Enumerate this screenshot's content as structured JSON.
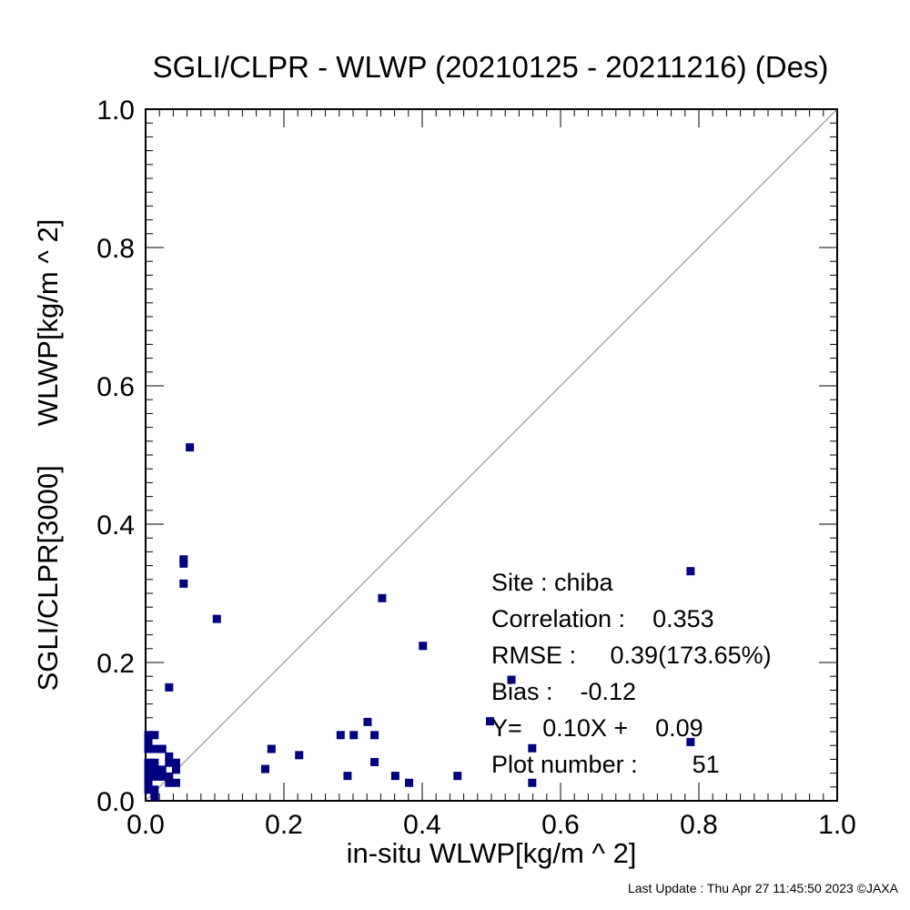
{
  "chart_data": {
    "type": "scatter",
    "title": "SGLI/CLPR - WLWP (20210125 - 20211216) (Des)",
    "xlabel": "in-situ WLWP[kg/m ^ 2]",
    "ylabel": "SGLI/CLPR[3000]     WLWP[kg/m ^ 2]",
    "xlim": [
      0.0,
      1.0
    ],
    "ylim": [
      0.0,
      1.0
    ],
    "x_ticks": [
      "0.0",
      "0.2",
      "0.4",
      "0.6",
      "0.8",
      "1.0"
    ],
    "y_ticks": [
      "0.0",
      "0.2",
      "0.4",
      "0.6",
      "0.8",
      "1.0"
    ],
    "reference_line": "1:1",
    "marker_color": "#000080",
    "points": [
      {
        "x": 0.064,
        "y": 0.511
      },
      {
        "x": 0.055,
        "y": 0.349
      },
      {
        "x": 0.055,
        "y": 0.343
      },
      {
        "x": 0.055,
        "y": 0.314
      },
      {
        "x": 0.103,
        "y": 0.263
      },
      {
        "x": 0.034,
        "y": 0.164
      },
      {
        "x": 0.342,
        "y": 0.293
      },
      {
        "x": 0.401,
        "y": 0.224
      },
      {
        "x": 0.788,
        "y": 0.332
      },
      {
        "x": 0.529,
        "y": 0.175
      },
      {
        "x": 0.498,
        "y": 0.115
      },
      {
        "x": 0.321,
        "y": 0.114
      },
      {
        "x": 0.282,
        "y": 0.095
      },
      {
        "x": 0.301,
        "y": 0.095
      },
      {
        "x": 0.331,
        "y": 0.095
      },
      {
        "x": 0.182,
        "y": 0.075
      },
      {
        "x": 0.222,
        "y": 0.066
      },
      {
        "x": 0.331,
        "y": 0.056
      },
      {
        "x": 0.173,
        "y": 0.046
      },
      {
        "x": 0.292,
        "y": 0.036
      },
      {
        "x": 0.361,
        "y": 0.036
      },
      {
        "x": 0.451,
        "y": 0.036
      },
      {
        "x": 0.381,
        "y": 0.026
      },
      {
        "x": 0.559,
        "y": 0.076
      },
      {
        "x": 0.559,
        "y": 0.026
      },
      {
        "x": 0.788,
        "y": 0.085
      },
      {
        "x": 0.004,
        "y": 0.095
      },
      {
        "x": 0.013,
        "y": 0.095
      },
      {
        "x": 0.004,
        "y": 0.085
      },
      {
        "x": 0.004,
        "y": 0.075
      },
      {
        "x": 0.013,
        "y": 0.075
      },
      {
        "x": 0.024,
        "y": 0.075
      },
      {
        "x": 0.034,
        "y": 0.064
      },
      {
        "x": 0.034,
        "y": 0.055
      },
      {
        "x": 0.044,
        "y": 0.055
      },
      {
        "x": 0.004,
        "y": 0.055
      },
      {
        "x": 0.004,
        "y": 0.045
      },
      {
        "x": 0.013,
        "y": 0.045
      },
      {
        "x": 0.013,
        "y": 0.035
      },
      {
        "x": 0.024,
        "y": 0.035
      },
      {
        "x": 0.034,
        "y": 0.035
      },
      {
        "x": 0.034,
        "y": 0.026
      },
      {
        "x": 0.044,
        "y": 0.026
      },
      {
        "x": 0.004,
        "y": 0.026
      },
      {
        "x": 0.004,
        "y": 0.016
      },
      {
        "x": 0.013,
        "y": 0.016
      },
      {
        "x": 0.013,
        "y": 0.006
      },
      {
        "x": 0.004,
        "y": 0.035
      },
      {
        "x": 0.024,
        "y": 0.045
      },
      {
        "x": 0.044,
        "y": 0.045
      },
      {
        "x": 0.013,
        "y": 0.055
      }
    ]
  },
  "stats": {
    "site": "Site : chiba",
    "correlation": "Correlation :    0.353",
    "rmse": "RMSE :     0.39(173.65%)",
    "bias": "Bias :    -0.12",
    "regression": "Y=   0.10X +    0.09",
    "plot_number": "Plot number :        51"
  },
  "footer": "Last Update : Thu Apr 27 11:45:50 2023  ©JAXA"
}
